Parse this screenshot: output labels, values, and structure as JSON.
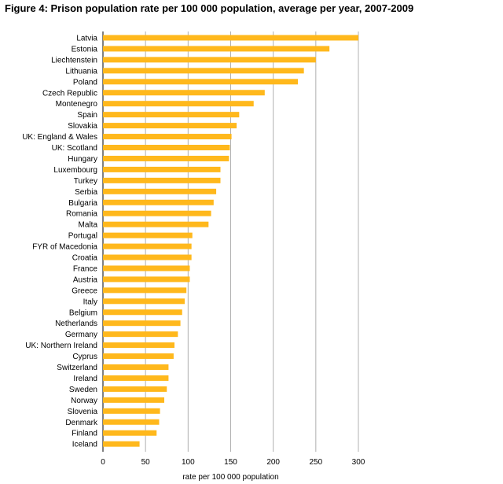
{
  "chart_data": {
    "type": "bar",
    "orientation": "horizontal",
    "title": "Figure 4: Prison population rate per 100 000 population, average per year, 2007-2009",
    "xlabel": "rate per 100 000 population",
    "ylabel": "",
    "xlim": [
      0,
      300
    ],
    "x_ticks": [
      0,
      50,
      100,
      150,
      200,
      250,
      300
    ],
    "x_tick_labels": [
      "0",
      "50",
      "100",
      "150",
      "200",
      "250",
      "300"
    ],
    "grid": "vertical",
    "bar_color": "#FFB81C",
    "categories": [
      "Latvia",
      "Estonia",
      "Liechtenstein",
      "Lithuania",
      "Poland",
      "Czech Republic",
      "Montenegro",
      "Spain",
      "Slovakia",
      "UK: England & Wales",
      "UK: Scotland",
      "Hungary",
      "Luxembourg",
      "Turkey",
      "Serbia",
      "Bulgaria",
      "Romania",
      "Malta",
      "Portugal",
      "FYR of Macedonia",
      "Croatia",
      "France",
      "Austria",
      "Greece",
      "Italy",
      "Belgium",
      "Netherlands",
      "Germany",
      "UK: Northern Ireland",
      "Cyprus",
      "Switzerland",
      "Ireland",
      "Sweden",
      "Norway",
      "Slovenia",
      "Denmark",
      "Finland",
      "Iceland"
    ],
    "values": [
      300,
      266,
      250,
      236,
      229,
      190,
      177,
      160,
      157,
      151,
      149,
      148,
      138,
      138,
      133,
      130,
      127,
      124,
      105,
      104,
      104,
      102,
      102,
      98,
      96,
      93,
      91,
      88,
      84,
      83,
      77,
      77,
      75,
      72,
      67,
      66,
      63,
      43
    ]
  }
}
